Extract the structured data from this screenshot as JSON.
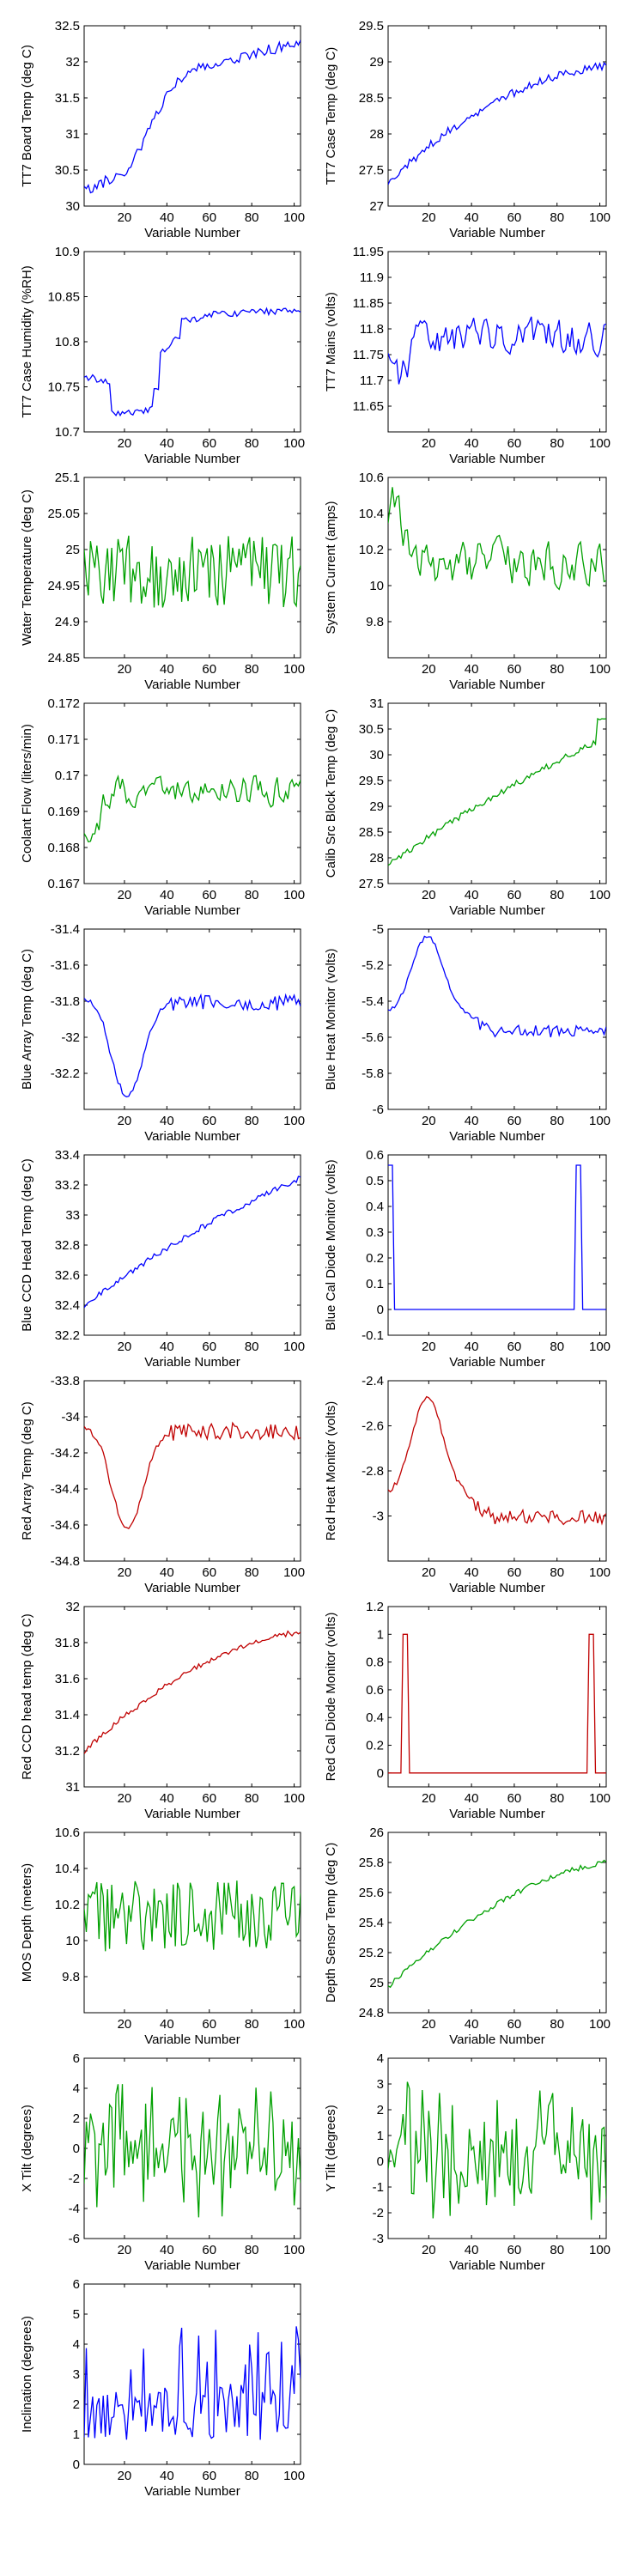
{
  "colors": {
    "blue": "#0000ff",
    "green": "#00a000",
    "red": "#c00000",
    "axis": "#000000"
  },
  "chart_data": [
    {
      "type": "line",
      "ylabel": "TT7 Board Temp (deg C)",
      "xlabel": "Variable Number",
      "color": "#0000ff",
      "ylim": [
        30,
        32.5
      ],
      "xlim": [
        1,
        103
      ],
      "yticks": [
        "32.5",
        "32",
        "31.5",
        "31",
        "30.5",
        "30"
      ],
      "ytick_values": [
        32.5,
        32,
        31.5,
        31,
        30.5,
        30
      ],
      "xticks": [
        "20",
        "40",
        "60",
        "80",
        "100"
      ],
      "xtick_values": [
        20,
        40,
        60,
        80,
        100
      ],
      "profile": "board",
      "range": [
        30.1,
        32.3
      ],
      "noise": 0.1,
      "seed": 11
    },
    {
      "type": "line",
      "ylabel": "TT7 Case Temp (deg C)",
      "xlabel": "Variable Number",
      "color": "#0000ff",
      "ylim": [
        27,
        29.5
      ],
      "xlim": [
        1,
        103
      ],
      "yticks": [
        "29.5",
        "29",
        "28.5",
        "28",
        "27.5",
        "27"
      ],
      "ytick_values": [
        29.5,
        29,
        28.5,
        28,
        27.5,
        27
      ],
      "xticks": [
        "20",
        "40",
        "60",
        "80",
        "100"
      ],
      "xtick_values": [
        20,
        40,
        60,
        80,
        100
      ],
      "profile": "warm",
      "range": [
        27.3,
        29.0
      ],
      "noise": 0.1,
      "seed": 12
    },
    {
      "type": "line",
      "ylabel": "TT7 Case Humidity (%RH)",
      "xlabel": "Variable Number",
      "color": "#0000ff",
      "ylim": [
        10.7,
        10.9
      ],
      "xlim": [
        1,
        103
      ],
      "yticks": [
        "10.9",
        "10.85",
        "10.8",
        "10.75",
        "10.7"
      ],
      "ytick_values": [
        10.9,
        10.85,
        10.8,
        10.75,
        10.7
      ],
      "xticks": [
        "20",
        "40",
        "60",
        "80",
        "100"
      ],
      "xtick_values": [
        20,
        40,
        60,
        80,
        100
      ],
      "profile": "steps",
      "range": [
        10.71,
        10.84
      ],
      "noise": 0.08,
      "seed": 13
    },
    {
      "type": "line",
      "ylabel": "TT7 Mains  (volts)",
      "xlabel": "Variable Number",
      "color": "#0000ff",
      "ylim": [
        11.6,
        11.95
      ],
      "xlim": [
        1,
        103
      ],
      "yticks": [
        "11.95",
        "11.9",
        "11.85",
        "11.8",
        "11.75",
        "11.7",
        "11.65"
      ],
      "ytick_values": [
        11.95,
        11.9,
        11.85,
        11.8,
        11.75,
        11.7,
        11.65
      ],
      "xticks": [
        "20",
        "40",
        "60",
        "80",
        "100"
      ],
      "xtick_values": [
        20,
        40,
        60,
        80,
        100
      ],
      "profile": "mains",
      "range": [
        11.64,
        11.88
      ],
      "noise": 0.55,
      "seed": 14
    },
    {
      "type": "line",
      "ylabel": "Water Temperature (deg C)",
      "xlabel": "Variable Number",
      "color": "#00a000",
      "ylim": [
        24.85,
        25.1
      ],
      "xlim": [
        1,
        103
      ],
      "yticks": [
        "25.1",
        "25.05",
        "25",
        "24.95",
        "24.9",
        "24.85"
      ],
      "ytick_values": [
        25.1,
        25.05,
        25,
        24.95,
        24.9,
        24.85
      ],
      "xticks": [
        "20",
        "40",
        "60",
        "80",
        "100"
      ],
      "xtick_values": [
        20,
        40,
        60,
        80,
        100
      ],
      "profile": "flat",
      "range": [
        24.88,
        25.06
      ],
      "noise": 0.8,
      "seed": 15
    },
    {
      "type": "line",
      "ylabel": "System Current (amps)",
      "xlabel": "Variable Number",
      "color": "#00a000",
      "ylim": [
        9.6,
        10.6
      ],
      "xlim": [
        1,
        103
      ],
      "yticks": [
        "10.6",
        "10.4",
        "10.2",
        "10",
        "9.8"
      ],
      "ytick_values": [
        10.6,
        10.4,
        10.2,
        10,
        9.8
      ],
      "xticks": [
        "20",
        "40",
        "60",
        "80",
        "100"
      ],
      "xtick_values": [
        20,
        40,
        60,
        80,
        100
      ],
      "profile": "current",
      "range": [
        9.7,
        10.65
      ],
      "noise": 0.5,
      "seed": 16
    },
    {
      "type": "line",
      "ylabel": "Coolant Flow (liters/min)",
      "xlabel": "Variable Number",
      "color": "#00a000",
      "ylim": [
        0.167,
        0.172
      ],
      "xlim": [
        1,
        103
      ],
      "yticks": [
        "0.172",
        "0.171",
        "0.17",
        "0.169",
        "0.168",
        "0.167"
      ],
      "ytick_values": [
        0.172,
        0.171,
        0.17,
        0.169,
        0.168,
        0.167
      ],
      "xticks": [
        "20",
        "40",
        "60",
        "80",
        "100"
      ],
      "xtick_values": [
        20,
        40,
        60,
        80,
        100
      ],
      "profile": "coolant",
      "range": [
        0.1675,
        0.1707
      ],
      "noise": 0.5,
      "seed": 17
    },
    {
      "type": "line",
      "ylabel": "Calib Src Block Temp (deg C)",
      "xlabel": "Variable Number",
      "color": "#00a000",
      "ylim": [
        27.5,
        31
      ],
      "xlim": [
        1,
        103
      ],
      "yticks": [
        "31",
        "30.5",
        "30",
        "29.5",
        "29",
        "28.5",
        "28",
        "27.5"
      ],
      "ytick_values": [
        31,
        30.5,
        30,
        29.5,
        29,
        28.5,
        28,
        27.5
      ],
      "xticks": [
        "20",
        "40",
        "60",
        "80",
        "100"
      ],
      "xtick_values": [
        20,
        40,
        60,
        80,
        100
      ],
      "profile": "calib",
      "range": [
        27.8,
        30.7
      ],
      "noise": 0.06,
      "seed": 18
    },
    {
      "type": "line",
      "ylabel": "Blue Array Temp (deg C)",
      "xlabel": "Variable Number",
      "color": "#0000ff",
      "ylim": [
        -32.4,
        -31.4
      ],
      "xlim": [
        1,
        103
      ],
      "yticks": [
        "-31.4",
        "-31.6",
        "-31.8",
        "-32",
        "-32.2"
      ],
      "ytick_values": [
        -31.4,
        -31.6,
        -31.8,
        -32,
        -32.2
      ],
      "xticks": [
        "20",
        "40",
        "60",
        "80",
        "100"
      ],
      "xtick_values": [
        20,
        40,
        60,
        80,
        100
      ],
      "profile": "arraydip",
      "range": [
        -32.33,
        -31.75
      ],
      "noise": 0.22,
      "seed": 19
    },
    {
      "type": "line",
      "ylabel": "Blue Heat Monitor (volts)",
      "xlabel": "Variable Number",
      "color": "#0000ff",
      "ylim": [
        -6,
        -5
      ],
      "xlim": [
        1,
        103
      ],
      "yticks": [
        "-5",
        "-5.2",
        "-5.4",
        "-5.6",
        "-5.8",
        "-6"
      ],
      "ytick_values": [
        -5,
        -5.2,
        -5.4,
        -5.6,
        -5.8,
        -6
      ],
      "xticks": [
        "20",
        "40",
        "60",
        "80",
        "100"
      ],
      "xtick_values": [
        20,
        40,
        60,
        80,
        100
      ],
      "profile": "heatpeak",
      "range": [
        -5.66,
        -5.04
      ],
      "noise": 0.15,
      "seed": 20
    },
    {
      "type": "line",
      "ylabel": "Blue CCD Head Temp (deg C)",
      "xlabel": "Variable Number",
      "color": "#0000ff",
      "ylim": [
        32.2,
        33.4
      ],
      "xlim": [
        1,
        103
      ],
      "yticks": [
        "33.4",
        "33.2",
        "33",
        "32.8",
        "32.6",
        "32.4",
        "32.2"
      ],
      "ytick_values": [
        33.4,
        33.2,
        33,
        32.8,
        32.6,
        32.4,
        32.2
      ],
      "xticks": [
        "20",
        "40",
        "60",
        "80",
        "100"
      ],
      "xtick_values": [
        20,
        40,
        60,
        80,
        100
      ],
      "profile": "ccd",
      "range": [
        32.38,
        33.32
      ],
      "noise": 0.06,
      "seed": 21
    },
    {
      "type": "line",
      "ylabel": "Blue Cal Diode Monitor (volts)",
      "xlabel": "Variable Number",
      "color": "#0000ff",
      "ylim": [
        -0.1,
        0.6
      ],
      "xlim": [
        1,
        103
      ],
      "yticks": [
        "0.6",
        "0.5",
        "0.4",
        "0.3",
        "0.2",
        "0.1",
        "0",
        "-0.1"
      ],
      "ytick_values": [
        0.6,
        0.5,
        0.4,
        0.3,
        0.2,
        0.1,
        0,
        -0.1
      ],
      "xticks": [
        "20",
        "40",
        "60",
        "80",
        "100"
      ],
      "xtick_values": [
        20,
        40,
        60,
        80,
        100
      ],
      "profile": "diode",
      "pulses": [
        [
          1,
          3
        ],
        [
          89,
          91
        ]
      ],
      "range": [
        0,
        0.56
      ],
      "noise": 0,
      "seed": 22
    },
    {
      "type": "line",
      "ylabel": "Red Array Temp (deg C)",
      "xlabel": "Variable Number",
      "color": "#c00000",
      "ylim": [
        -34.8,
        -33.8
      ],
      "xlim": [
        1,
        103
      ],
      "yticks": [
        "-33.8",
        "-34",
        "-34.2",
        "-34.4",
        "-34.6",
        "-34.8"
      ],
      "ytick_values": [
        -33.8,
        -34,
        -34.2,
        -34.4,
        -34.6,
        -34.8
      ],
      "xticks": [
        "20",
        "40",
        "60",
        "80",
        "100"
      ],
      "xtick_values": [
        20,
        40,
        60,
        80,
        100
      ],
      "profile": "arraydip",
      "range": [
        -34.62,
        -34.02
      ],
      "noise": 0.22,
      "seed": 23
    },
    {
      "type": "line",
      "ylabel": "Red Heat Monitor (volts)",
      "xlabel": "Variable Number",
      "color": "#c00000",
      "ylim": [
        -3.2,
        -2.4
      ],
      "xlim": [
        1,
        103
      ],
      "yticks": [
        "-2.4",
        "-2.6",
        "-2.8",
        "-3"
      ],
      "ytick_values": [
        -2.4,
        -2.6,
        -2.8,
        -3
      ],
      "xticks": [
        "20",
        "40",
        "60",
        "80",
        "100"
      ],
      "xtick_values": [
        20,
        40,
        60,
        80,
        100
      ],
      "profile": "heatpeak",
      "range": [
        -3.1,
        -2.47
      ],
      "noise": 0.15,
      "seed": 24
    },
    {
      "type": "line",
      "ylabel": "Red CCD head temp (deg C)",
      "xlabel": "Variable Number",
      "color": "#c00000",
      "ylim": [
        31,
        32
      ],
      "xlim": [
        1,
        103
      ],
      "yticks": [
        "32",
        "31.8",
        "31.6",
        "31.4",
        "31.2",
        "31"
      ],
      "ytick_values": [
        32,
        31.8,
        31.6,
        31.4,
        31.2,
        31
      ],
      "xticks": [
        "20",
        "40",
        "60",
        "80",
        "100"
      ],
      "xtick_values": [
        20,
        40,
        60,
        80,
        100
      ],
      "profile": "redccd",
      "range": [
        31.18,
        31.92
      ],
      "noise": 0.06,
      "seed": 25
    },
    {
      "type": "line",
      "ylabel": "Red Cal Diode Monitor (volts)",
      "xlabel": "Variable Number",
      "color": "#c00000",
      "ylim": [
        -0.1,
        1.2
      ],
      "xlim": [
        1,
        103
      ],
      "yticks": [
        "1.2",
        "1",
        "0.8",
        "0.6",
        "0.4",
        "0.2",
        "0"
      ],
      "ytick_values": [
        1.2,
        1,
        0.8,
        0.6,
        0.4,
        0.2,
        0
      ],
      "xticks": [
        "20",
        "40",
        "60",
        "80",
        "100"
      ],
      "xtick_values": [
        20,
        40,
        60,
        80,
        100
      ],
      "profile": "diode",
      "pulses": [
        [
          8,
          10
        ],
        [
          95,
          97
        ]
      ],
      "range": [
        0,
        1.0
      ],
      "noise": 0,
      "seed": 26
    },
    {
      "type": "line",
      "ylabel": "MOS Depth  (meters)",
      "xlabel": "Variable Number",
      "color": "#00a000",
      "ylim": [
        9.6,
        10.6
      ],
      "xlim": [
        1,
        103
      ],
      "yticks": [
        "10.6",
        "10.4",
        "10.2",
        "10",
        "9.8"
      ],
      "ytick_values": [
        10.6,
        10.4,
        10.2,
        10,
        9.8
      ],
      "xticks": [
        "20",
        "40",
        "60",
        "80",
        "100"
      ],
      "xtick_values": [
        20,
        40,
        60,
        80,
        100
      ],
      "profile": "flat",
      "range": [
        9.78,
        10.5
      ],
      "noise": 0.8,
      "seed": 27
    },
    {
      "type": "line",
      "ylabel": "Depth Sensor Temp (deg C)",
      "xlabel": "Variable Number",
      "color": "#00a000",
      "ylim": [
        24.8,
        26
      ],
      "xlim": [
        1,
        103
      ],
      "yticks": [
        "26",
        "25.8",
        "25.6",
        "25.4",
        "25.2",
        "25",
        "24.8"
      ],
      "ytick_values": [
        26,
        25.8,
        25.6,
        25.4,
        25.2,
        25,
        24.8
      ],
      "xticks": [
        "20",
        "40",
        "60",
        "80",
        "100"
      ],
      "xtick_values": [
        20,
        40,
        60,
        80,
        100
      ],
      "profile": "depthtemp",
      "range": [
        24.95,
        25.85
      ],
      "noise": 0.06,
      "seed": 28
    },
    {
      "type": "line",
      "ylabel": "X Tilt  (degrees)",
      "xlabel": "Variable Number",
      "color": "#00a000",
      "ylim": [
        -6,
        6
      ],
      "xlim": [
        1,
        103
      ],
      "yticks": [
        "6",
        "4",
        "2",
        "0",
        "-2",
        "-4",
        "-6"
      ],
      "ytick_values": [
        6,
        4,
        2,
        0,
        -2,
        -4,
        -6
      ],
      "xticks": [
        "20",
        "40",
        "60",
        "80",
        "100"
      ],
      "xtick_values": [
        20,
        40,
        60,
        80,
        100
      ],
      "profile": "tilt",
      "range": [
        -5.2,
        4.8
      ],
      "noise": 1,
      "seed": 29
    },
    {
      "type": "line",
      "ylabel": "Y Tilt  (degrees)",
      "xlabel": "Variable Number",
      "color": "#00a000",
      "ylim": [
        -3,
        4
      ],
      "xlim": [
        1,
        103
      ],
      "yticks": [
        "4",
        "3",
        "2",
        "1",
        "0",
        "-1",
        "-2",
        "-3"
      ],
      "ytick_values": [
        4,
        3,
        2,
        1,
        0,
        -1,
        -2,
        -3
      ],
      "xticks": [
        "20",
        "40",
        "60",
        "80",
        "100"
      ],
      "xtick_values": [
        20,
        40,
        60,
        80,
        100
      ],
      "profile": "tilt",
      "range": [
        -2.7,
        3.5
      ],
      "noise": 1,
      "seed": 30
    },
    {
      "type": "line",
      "ylabel": "Inclination  (degrees)",
      "xlabel": "Variable Number",
      "color": "#0000ff",
      "ylim": [
        0,
        6
      ],
      "xlim": [
        1,
        103
      ],
      "yticks": [
        "6",
        "5",
        "4",
        "3",
        "2",
        "1",
        "0"
      ],
      "ytick_values": [
        6,
        5,
        4,
        3,
        2,
        1,
        0
      ],
      "xticks": [
        "20",
        "40",
        "60",
        "80",
        "100"
      ],
      "xtick_values": [
        20,
        40,
        60,
        80,
        100
      ],
      "profile": "incl",
      "range": [
        0.3,
        5.2
      ],
      "noise": 1,
      "seed": 31
    }
  ]
}
